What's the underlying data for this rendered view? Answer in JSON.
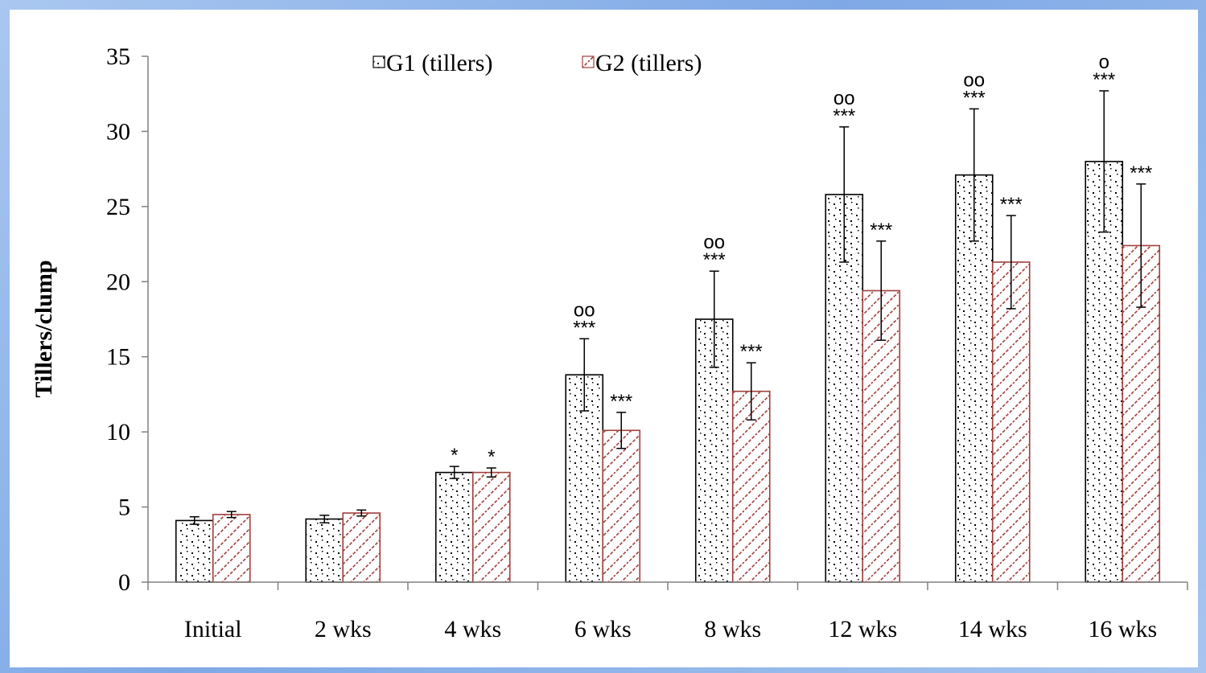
{
  "chart_data": {
    "type": "bar",
    "title": "",
    "xlabel": "",
    "ylabel": "Tillers/clump",
    "ylim": [
      0,
      35
    ],
    "yticks": [
      0,
      5,
      10,
      15,
      20,
      25,
      30,
      35
    ],
    "grid": false,
    "legend_position": "top-center",
    "categories": [
      "Initial",
      "2 wks",
      "4 wks",
      "6 wks",
      "8 wks",
      "12 wks",
      "14 wks",
      "16 wks"
    ],
    "series": [
      {
        "name": "G1 (tillers)",
        "color": "#000000",
        "pattern": "dots",
        "values": [
          4.1,
          4.2,
          7.3,
          13.8,
          17.5,
          25.8,
          27.1,
          28.0
        ],
        "errors": [
          0.25,
          0.25,
          0.4,
          2.4,
          3.2,
          4.5,
          4.4,
          4.7
        ],
        "significance": [
          "",
          "",
          "*",
          "***",
          "***",
          "***",
          "***",
          "***"
        ],
        "comparison_marks": [
          "",
          "",
          "",
          "oo",
          "oo",
          "oo",
          "oo",
          "o"
        ]
      },
      {
        "name": "G2 (tillers)",
        "color": "#a0403c",
        "pattern": "diagonal",
        "values": [
          4.5,
          4.6,
          7.3,
          10.1,
          12.7,
          19.4,
          21.3,
          22.4
        ],
        "errors": [
          0.2,
          0.2,
          0.3,
          1.2,
          1.9,
          3.3,
          3.1,
          4.1
        ],
        "significance": [
          "",
          "",
          "*",
          "***",
          "***",
          "***",
          "***",
          "***"
        ],
        "comparison_marks": [
          "",
          "",
          "",
          "",
          "",
          "",
          "",
          ""
        ]
      }
    ]
  }
}
